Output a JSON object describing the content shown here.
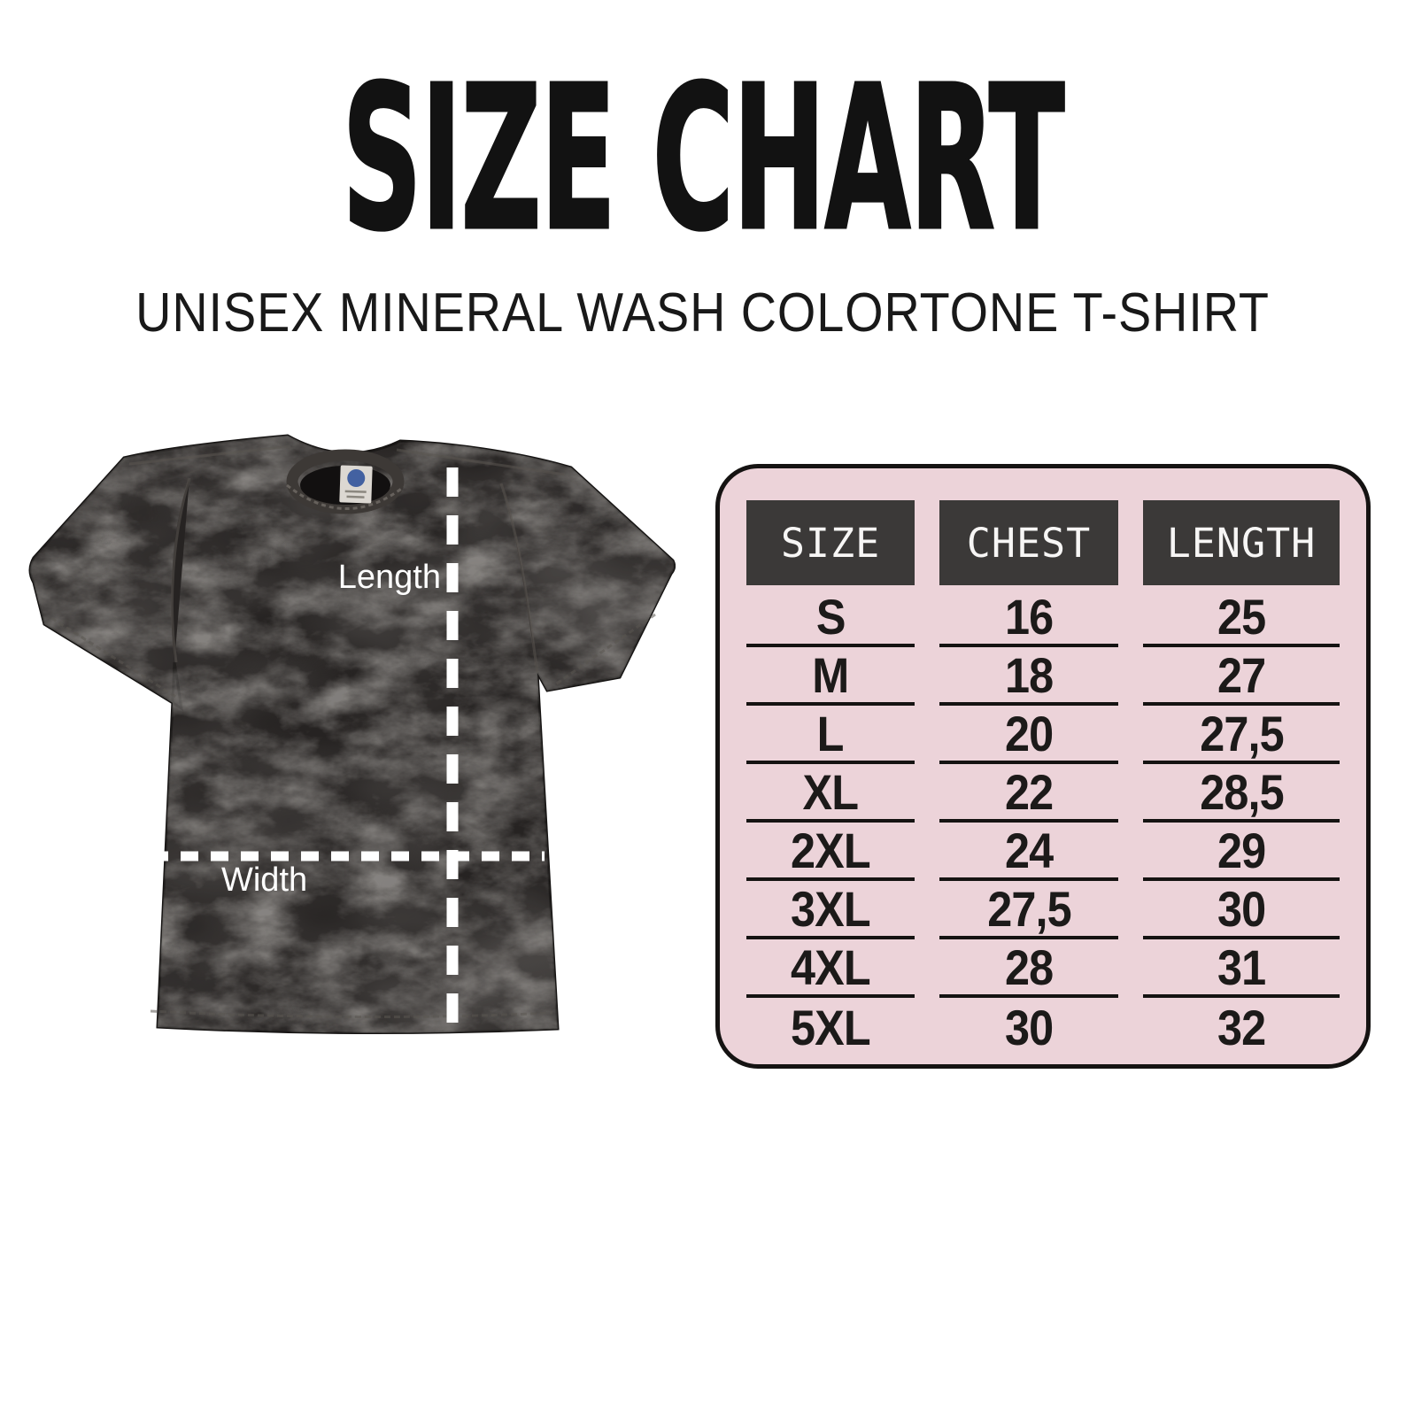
{
  "page": {
    "title": "SIZE CHART",
    "subtitle": "UNISEX MINERAL WASH COLORTONE T-SHIRT"
  },
  "figure": {
    "length_label": "Length",
    "width_label": "Width"
  },
  "chart_data": {
    "type": "table",
    "title": "SIZE CHART",
    "subtitle": "UNISEX MINERAL WASH COLORTONE T-SHIRT",
    "columns": [
      "SIZE",
      "CHEST",
      "LENGTH"
    ],
    "rows": [
      [
        "S",
        "16",
        "25"
      ],
      [
        "M",
        "18",
        "27"
      ],
      [
        "L",
        "20",
        "27,5"
      ],
      [
        "XL",
        "22",
        "28,5"
      ],
      [
        "2XL",
        "24",
        "29"
      ],
      [
        "3XL",
        "27,5",
        "30"
      ],
      [
        "4XL",
        "28",
        "31"
      ],
      [
        "5XL",
        "30",
        "32"
      ]
    ],
    "legend_position": "none",
    "grid": "row-separators-per-column"
  },
  "colors": {
    "table-bg": "#ecd3d9",
    "table-header-bg": "#3b3938",
    "ink": "#151312",
    "shirt-base": "#262322",
    "measure-line": "#ffffff"
  }
}
